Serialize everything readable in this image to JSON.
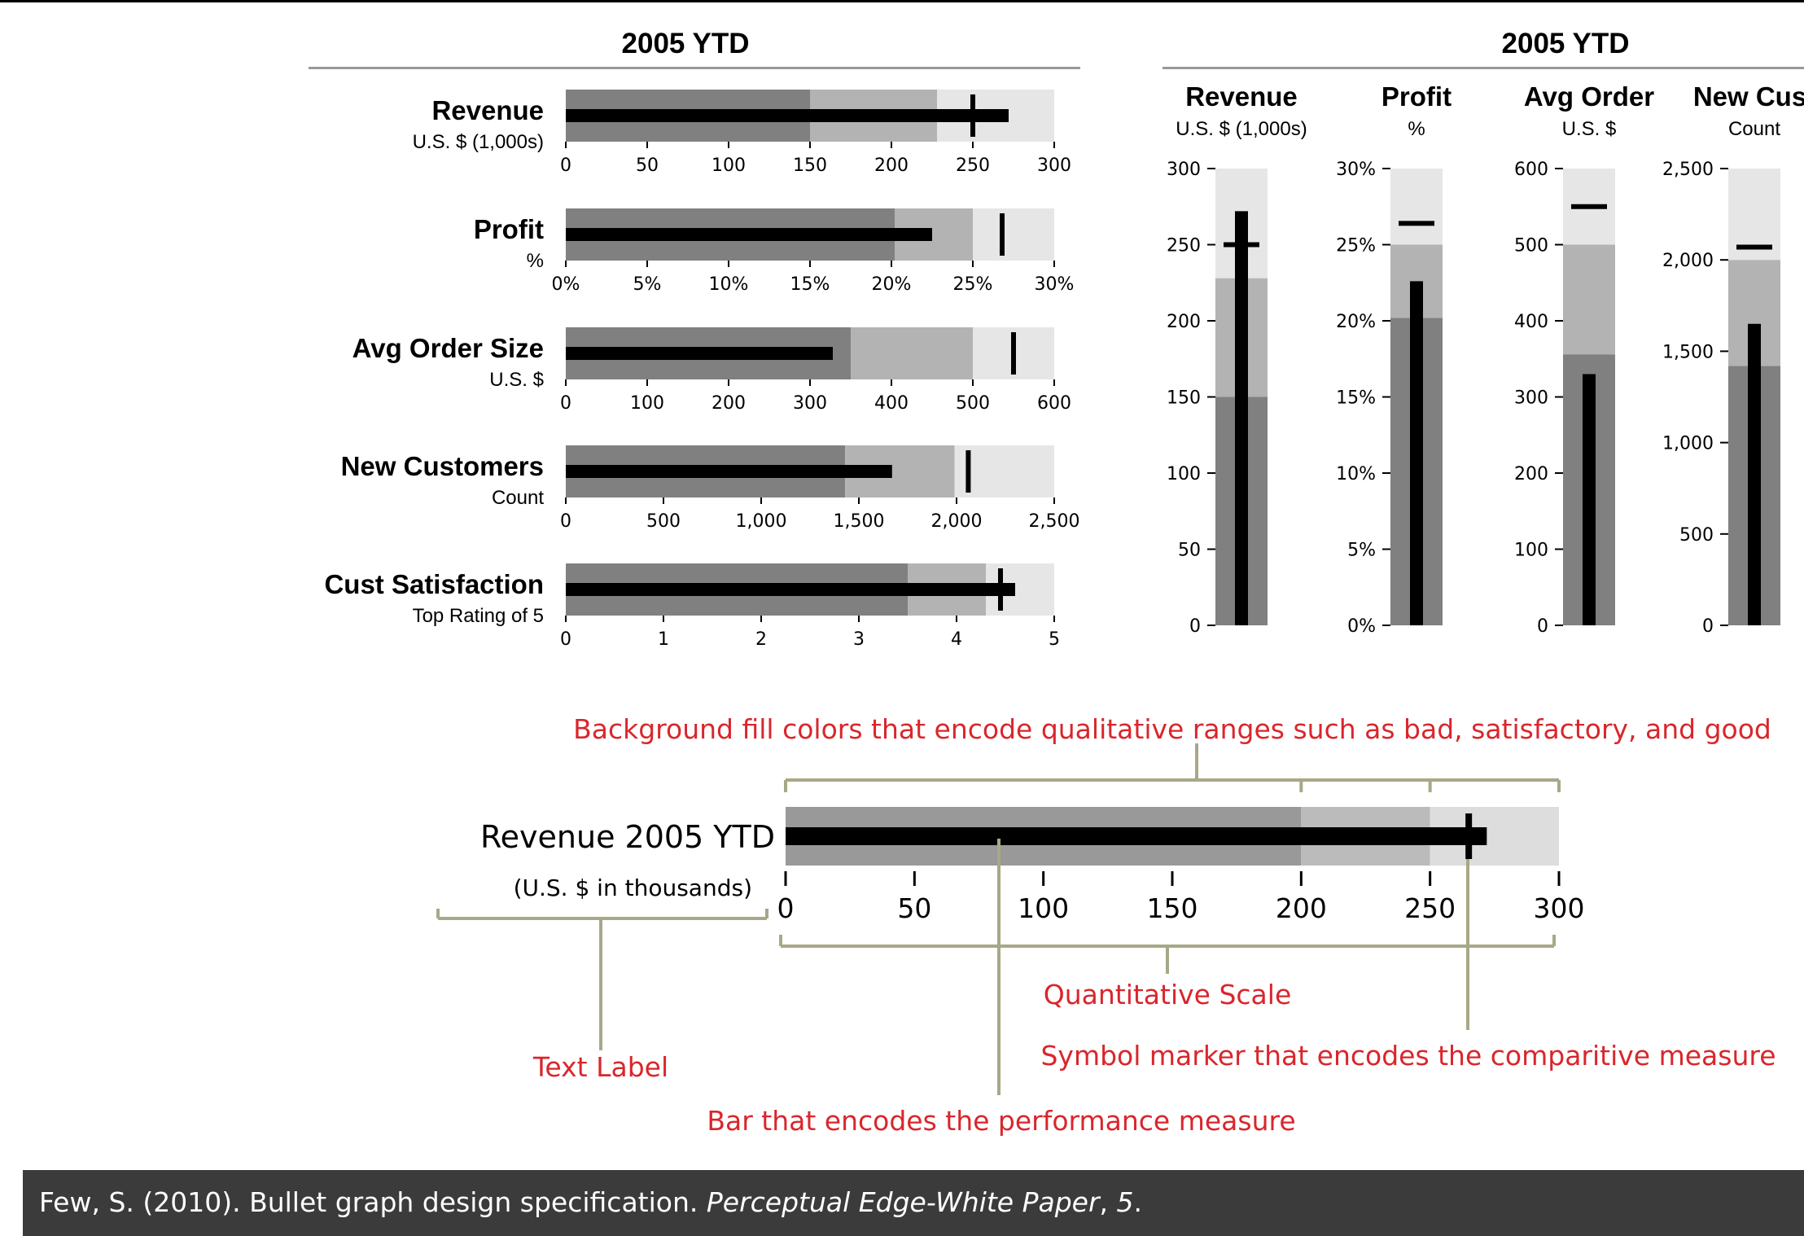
{
  "colors": {
    "range_dark": "#808080",
    "range_mid": "#b3b3b3",
    "range_light": "#e6e6e6",
    "measure": "#000000",
    "annotation_text": "#d9262c",
    "bracket": "#a8a887",
    "footer_bg": "#3b3b3b"
  },
  "horizontal_panel": {
    "title": "2005 YTD"
  },
  "vertical_panel": {
    "title": "2005 YTD"
  },
  "chart_data": [
    {
      "type": "bar",
      "orientation": "horizontal",
      "variant": "bullet",
      "title": "2005 YTD",
      "charts": [
        {
          "label": "Revenue",
          "sublabel": "U.S. $ (1,000s)",
          "ranges": [
            150,
            228,
            300
          ],
          "measure": 272,
          "target": 250,
          "ticks": [
            "0",
            "50",
            "100",
            "150",
            "200",
            "250",
            "300"
          ],
          "xlim": [
            0,
            300
          ]
        },
        {
          "label": "Profit",
          "sublabel": "%",
          "ranges": [
            20.2,
            25,
            30
          ],
          "measure": 22.5,
          "target": 26.8,
          "ticks": [
            "0%",
            "5%",
            "10%",
            "15%",
            "20%",
            "25%",
            "30%"
          ],
          "xlim": [
            0,
            30
          ]
        },
        {
          "label": "Avg Order Size",
          "sublabel": "U.S. $",
          "ranges": [
            350,
            500,
            600
          ],
          "measure": 328,
          "target": 550,
          "ticks": [
            "0",
            "100",
            "200",
            "300",
            "400",
            "500",
            "600"
          ],
          "xlim": [
            0,
            600
          ]
        },
        {
          "label": "New Customers",
          "sublabel": "Count",
          "ranges": [
            1430,
            1990,
            2500
          ],
          "measure": 1670,
          "target": 2060,
          "ticks": [
            "0",
            "500",
            "1,000",
            "1,500",
            "2,000",
            "2,500"
          ],
          "xlim": [
            0,
            2500
          ]
        },
        {
          "label": "Cust Satisfaction",
          "sublabel": "Top Rating of 5",
          "ranges": [
            3.5,
            4.3,
            5
          ],
          "measure": 4.6,
          "target": 4.45,
          "ticks": [
            "0",
            "1",
            "2",
            "3",
            "4",
            "5"
          ],
          "xlim": [
            0,
            5
          ]
        }
      ]
    },
    {
      "type": "bar",
      "orientation": "vertical",
      "variant": "bullet",
      "title": "2005 YTD",
      "charts": [
        {
          "label": "Revenue",
          "sublabel": "U.S. $ (1,000s)",
          "ranges": [
            150,
            228,
            300
          ],
          "measure": 272,
          "target": 250,
          "ticks": [
            "0",
            "50",
            "100",
            "150",
            "200",
            "250",
            "300"
          ],
          "ylim": [
            0,
            300
          ]
        },
        {
          "label": "Profit",
          "sublabel": "%",
          "ranges": [
            20.2,
            25,
            30
          ],
          "measure": 22.6,
          "target": 26.4,
          "ticks": [
            "0%",
            "5%",
            "10%",
            "15%",
            "20%",
            "25%",
            "30%"
          ],
          "ylim": [
            0,
            30
          ]
        },
        {
          "label": "Avg Order",
          "sublabel": "U.S. $",
          "ranges": [
            356,
            500,
            600
          ],
          "measure": 330,
          "target": 550,
          "ticks": [
            "0",
            "100",
            "200",
            "300",
            "400",
            "500",
            "600"
          ],
          "ylim": [
            0,
            600
          ]
        },
        {
          "label": "New Cust",
          "sublabel": "Count",
          "ranges": [
            1420,
            2000,
            2500
          ],
          "measure": 1650,
          "target": 2070,
          "ticks": [
            "0",
            "500",
            "1,000",
            "1,500",
            "2,000",
            "2,500"
          ],
          "ylim": [
            0,
            2500
          ]
        }
      ]
    },
    {
      "type": "bar",
      "orientation": "horizontal",
      "variant": "bullet-annotated",
      "label": "Revenue 2005 YTD",
      "sublabel": "(U.S. $ in thousands)",
      "ranges": [
        200,
        250,
        300
      ],
      "measure": 272,
      "target": 265,
      "ticks": [
        "0",
        "50",
        "100",
        "150",
        "200",
        "250",
        "300"
      ],
      "xlim": [
        0,
        300
      ],
      "annotations": {
        "ranges": "Background fill colors that encode qualitative ranges such as bad, satisfactory, and good",
        "scale": "Quantitative Scale",
        "target": "Symbol marker that encodes the comparitive measure",
        "label": "Text Label",
        "measure": "Bar that encodes the performance measure"
      }
    }
  ],
  "footer": {
    "citation_pre": "Few, S. (2010). Bullet graph design specification. ",
    "citation_journal": "Perceptual Edge-White Paper",
    "citation_sep": ", ",
    "citation_volume": "5",
    "citation_end": "."
  }
}
